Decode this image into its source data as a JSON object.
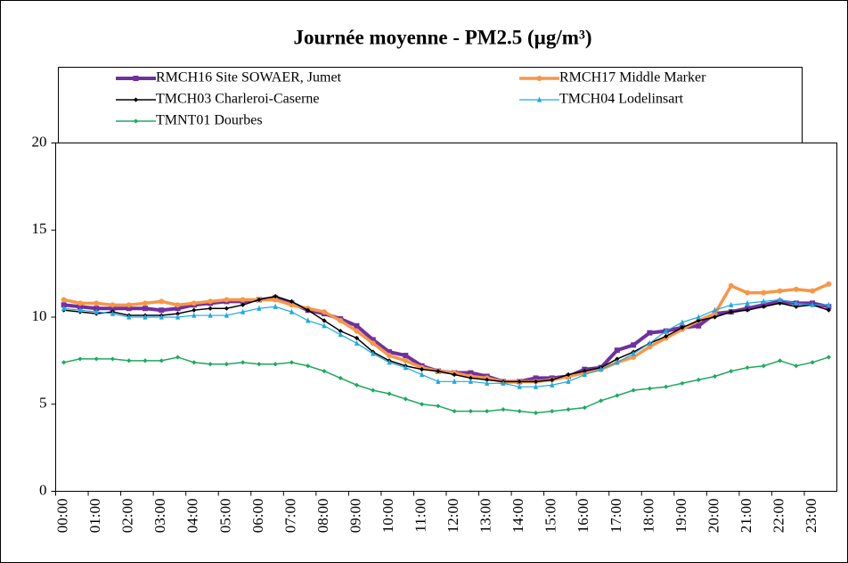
{
  "chart_data": {
    "type": "line",
    "title": "Journée moyenne - PM2.5 (µg/m³)",
    "categories": [
      "00:00",
      null,
      "01:00",
      null,
      "02:00",
      null,
      "03:00",
      null,
      "04:00",
      null,
      "05:00",
      null,
      "06:00",
      null,
      "07:00",
      null,
      "08:00",
      null,
      "09:00",
      null,
      "10:00",
      null,
      "11:00",
      null,
      "12:00",
      null,
      "13:00",
      null,
      "14:00",
      null,
      "15:00",
      null,
      "16:00",
      null,
      "17:00",
      null,
      "18:00",
      null,
      "19:00",
      null,
      "20:00",
      null,
      "21:00",
      null,
      "22:00",
      null,
      "23:00",
      null
    ],
    "ylim": [
      0,
      20
    ],
    "yticks": [
      0,
      5,
      10,
      15,
      20
    ],
    "grid": false,
    "series": [
      {
        "name": "RMCH16 Site SOWAER, Jumet",
        "color": "#7030a0",
        "marker": "square",
        "values": [
          10.7,
          10.6,
          10.5,
          10.5,
          10.5,
          10.5,
          10.4,
          10.5,
          10.7,
          10.8,
          10.9,
          10.9,
          11.0,
          11.1,
          10.8,
          10.4,
          10.2,
          9.9,
          9.5,
          8.7,
          8.0,
          7.8,
          7.2,
          6.9,
          6.8,
          6.8,
          6.6,
          6.3,
          6.3,
          6.5,
          6.5,
          6.6,
          7.0,
          7.1,
          8.1,
          8.4,
          9.1,
          9.2,
          9.4,
          9.5,
          10.2,
          10.3,
          10.5,
          10.7,
          10.9,
          10.8,
          10.8,
          10.6
        ]
      },
      {
        "name": "RMCH17 Middle Marker",
        "color": "#f79646",
        "marker": "circle",
        "values": [
          11.0,
          10.8,
          10.8,
          10.7,
          10.7,
          10.8,
          10.9,
          10.7,
          10.8,
          10.9,
          11.0,
          11.0,
          11.0,
          11.0,
          10.7,
          10.5,
          10.3,
          9.8,
          9.2,
          8.5,
          7.8,
          7.5,
          7.1,
          6.9,
          6.8,
          6.6,
          6.5,
          6.3,
          6.3,
          6.3,
          6.4,
          6.6,
          6.8,
          7.0,
          7.4,
          7.7,
          8.3,
          8.8,
          9.3,
          9.8,
          10.2,
          11.8,
          11.4,
          11.4,
          11.5,
          11.6,
          11.5,
          11.9
        ]
      },
      {
        "name": "TMCH03 Charleroi-Caserne",
        "color": "#000000",
        "marker": "diamond",
        "values": [
          10.4,
          10.3,
          10.2,
          10.3,
          10.1,
          10.1,
          10.1,
          10.2,
          10.4,
          10.5,
          10.5,
          10.7,
          11.0,
          11.2,
          10.9,
          10.4,
          9.8,
          9.2,
          8.8,
          8.0,
          7.5,
          7.2,
          7.0,
          6.9,
          6.7,
          6.5,
          6.4,
          6.3,
          6.3,
          6.3,
          6.4,
          6.7,
          6.9,
          7.1,
          7.6,
          8.0,
          8.5,
          8.9,
          9.4,
          9.8,
          10.0,
          10.3,
          10.4,
          10.6,
          10.8,
          10.6,
          10.7,
          10.4
        ]
      },
      {
        "name": "TMCH04 Lodelinsart",
        "color": "#1fa8e0",
        "marker": "triangle",
        "values": [
          10.5,
          10.4,
          10.3,
          10.2,
          10.0,
          10.0,
          10.0,
          10.0,
          10.1,
          10.1,
          10.1,
          10.3,
          10.5,
          10.6,
          10.3,
          9.8,
          9.5,
          9.0,
          8.5,
          7.9,
          7.4,
          7.1,
          6.7,
          6.3,
          6.3,
          6.3,
          6.2,
          6.2,
          6.0,
          6.0,
          6.1,
          6.3,
          6.7,
          7.0,
          7.4,
          7.9,
          8.5,
          9.2,
          9.7,
          10.0,
          10.4,
          10.7,
          10.8,
          10.9,
          11.0,
          10.8,
          10.7,
          10.7
        ]
      },
      {
        "name": "TMNT01 Dourbes",
        "color": "#1daa5c",
        "marker": "diamond",
        "values": [
          7.4,
          7.6,
          7.6,
          7.6,
          7.5,
          7.5,
          7.5,
          7.7,
          7.4,
          7.3,
          7.3,
          7.4,
          7.3,
          7.3,
          7.4,
          7.2,
          6.9,
          6.5,
          6.1,
          5.8,
          5.6,
          5.3,
          5.0,
          4.9,
          4.6,
          4.6,
          4.6,
          4.7,
          4.6,
          4.5,
          4.6,
          4.7,
          4.8,
          5.2,
          5.5,
          5.8,
          5.9,
          6.0,
          6.2,
          6.4,
          6.6,
          6.9,
          7.1,
          7.2,
          7.5,
          7.2,
          7.4,
          7.7
        ]
      }
    ]
  }
}
